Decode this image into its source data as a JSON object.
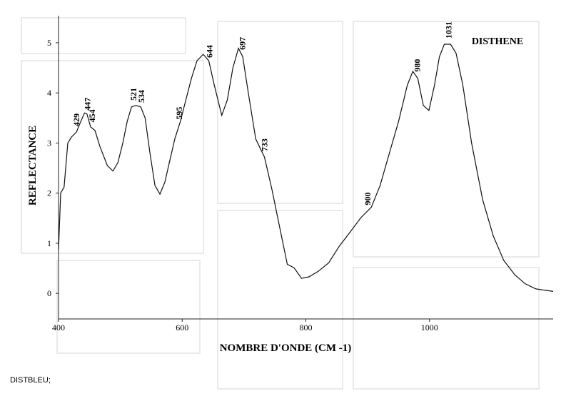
{
  "chart_data": {
    "type": "line",
    "title": "DISTHENE",
    "xlabel": "NOMBRE D'ONDE (CM -1)",
    "ylabel": "REFLECTANCE",
    "x": [
      400,
      403.5,
      409,
      415,
      421,
      429,
      436,
      442,
      446,
      452,
      459,
      467,
      479,
      488,
      496,
      504,
      511,
      518,
      525,
      533,
      540,
      548,
      556,
      564,
      572,
      580,
      588,
      597,
      606,
      615,
      624,
      634,
      643,
      652,
      664,
      673,
      682,
      691,
      698,
      707,
      719,
      733,
      745,
      758,
      770,
      781,
      793,
      805,
      820,
      837,
      854,
      872,
      889,
      906,
      920,
      935,
      950,
      964,
      973,
      981,
      990,
      999,
      1008,
      1016,
      1024,
      1034,
      1043,
      1054,
      1068,
      1086,
      1103,
      1120,
      1138,
      1155,
      1172,
      1200
    ],
    "values": [
      0.87,
      2.0,
      2.12,
      3.0,
      3.12,
      3.22,
      3.43,
      3.6,
      3.58,
      3.32,
      3.25,
      2.93,
      2.55,
      2.44,
      2.61,
      3.0,
      3.43,
      3.72,
      3.75,
      3.72,
      3.5,
      2.79,
      2.15,
      1.98,
      2.22,
      2.65,
      3.08,
      3.43,
      3.86,
      4.29,
      4.64,
      4.77,
      4.64,
      4.15,
      3.55,
      3.86,
      4.5,
      4.89,
      4.72,
      4.0,
      3.08,
      2.72,
      2.08,
      1.3,
      0.58,
      0.51,
      0.3,
      0.33,
      0.44,
      0.61,
      0.94,
      1.23,
      1.51,
      1.72,
      2.15,
      2.79,
      3.43,
      4.15,
      4.43,
      4.29,
      3.75,
      3.65,
      4.15,
      4.72,
      4.97,
      4.97,
      4.79,
      4.15,
      3.0,
      1.87,
      1.15,
      0.66,
      0.37,
      0.19,
      0.09,
      0.04
    ],
    "color": "#111111",
    "peaks": [
      429,
      447,
      454,
      521,
      534,
      595,
      644,
      697,
      733,
      900,
      980,
      1031
    ],
    "xlim": [
      400,
      1200
    ],
    "xticks": [
      400,
      600,
      800,
      1000
    ],
    "ylim": [
      -0.51,
      5.54
    ],
    "yticks": [
      0,
      1,
      2,
      3,
      4,
      5
    ]
  },
  "footer": "DISTBLEU;"
}
